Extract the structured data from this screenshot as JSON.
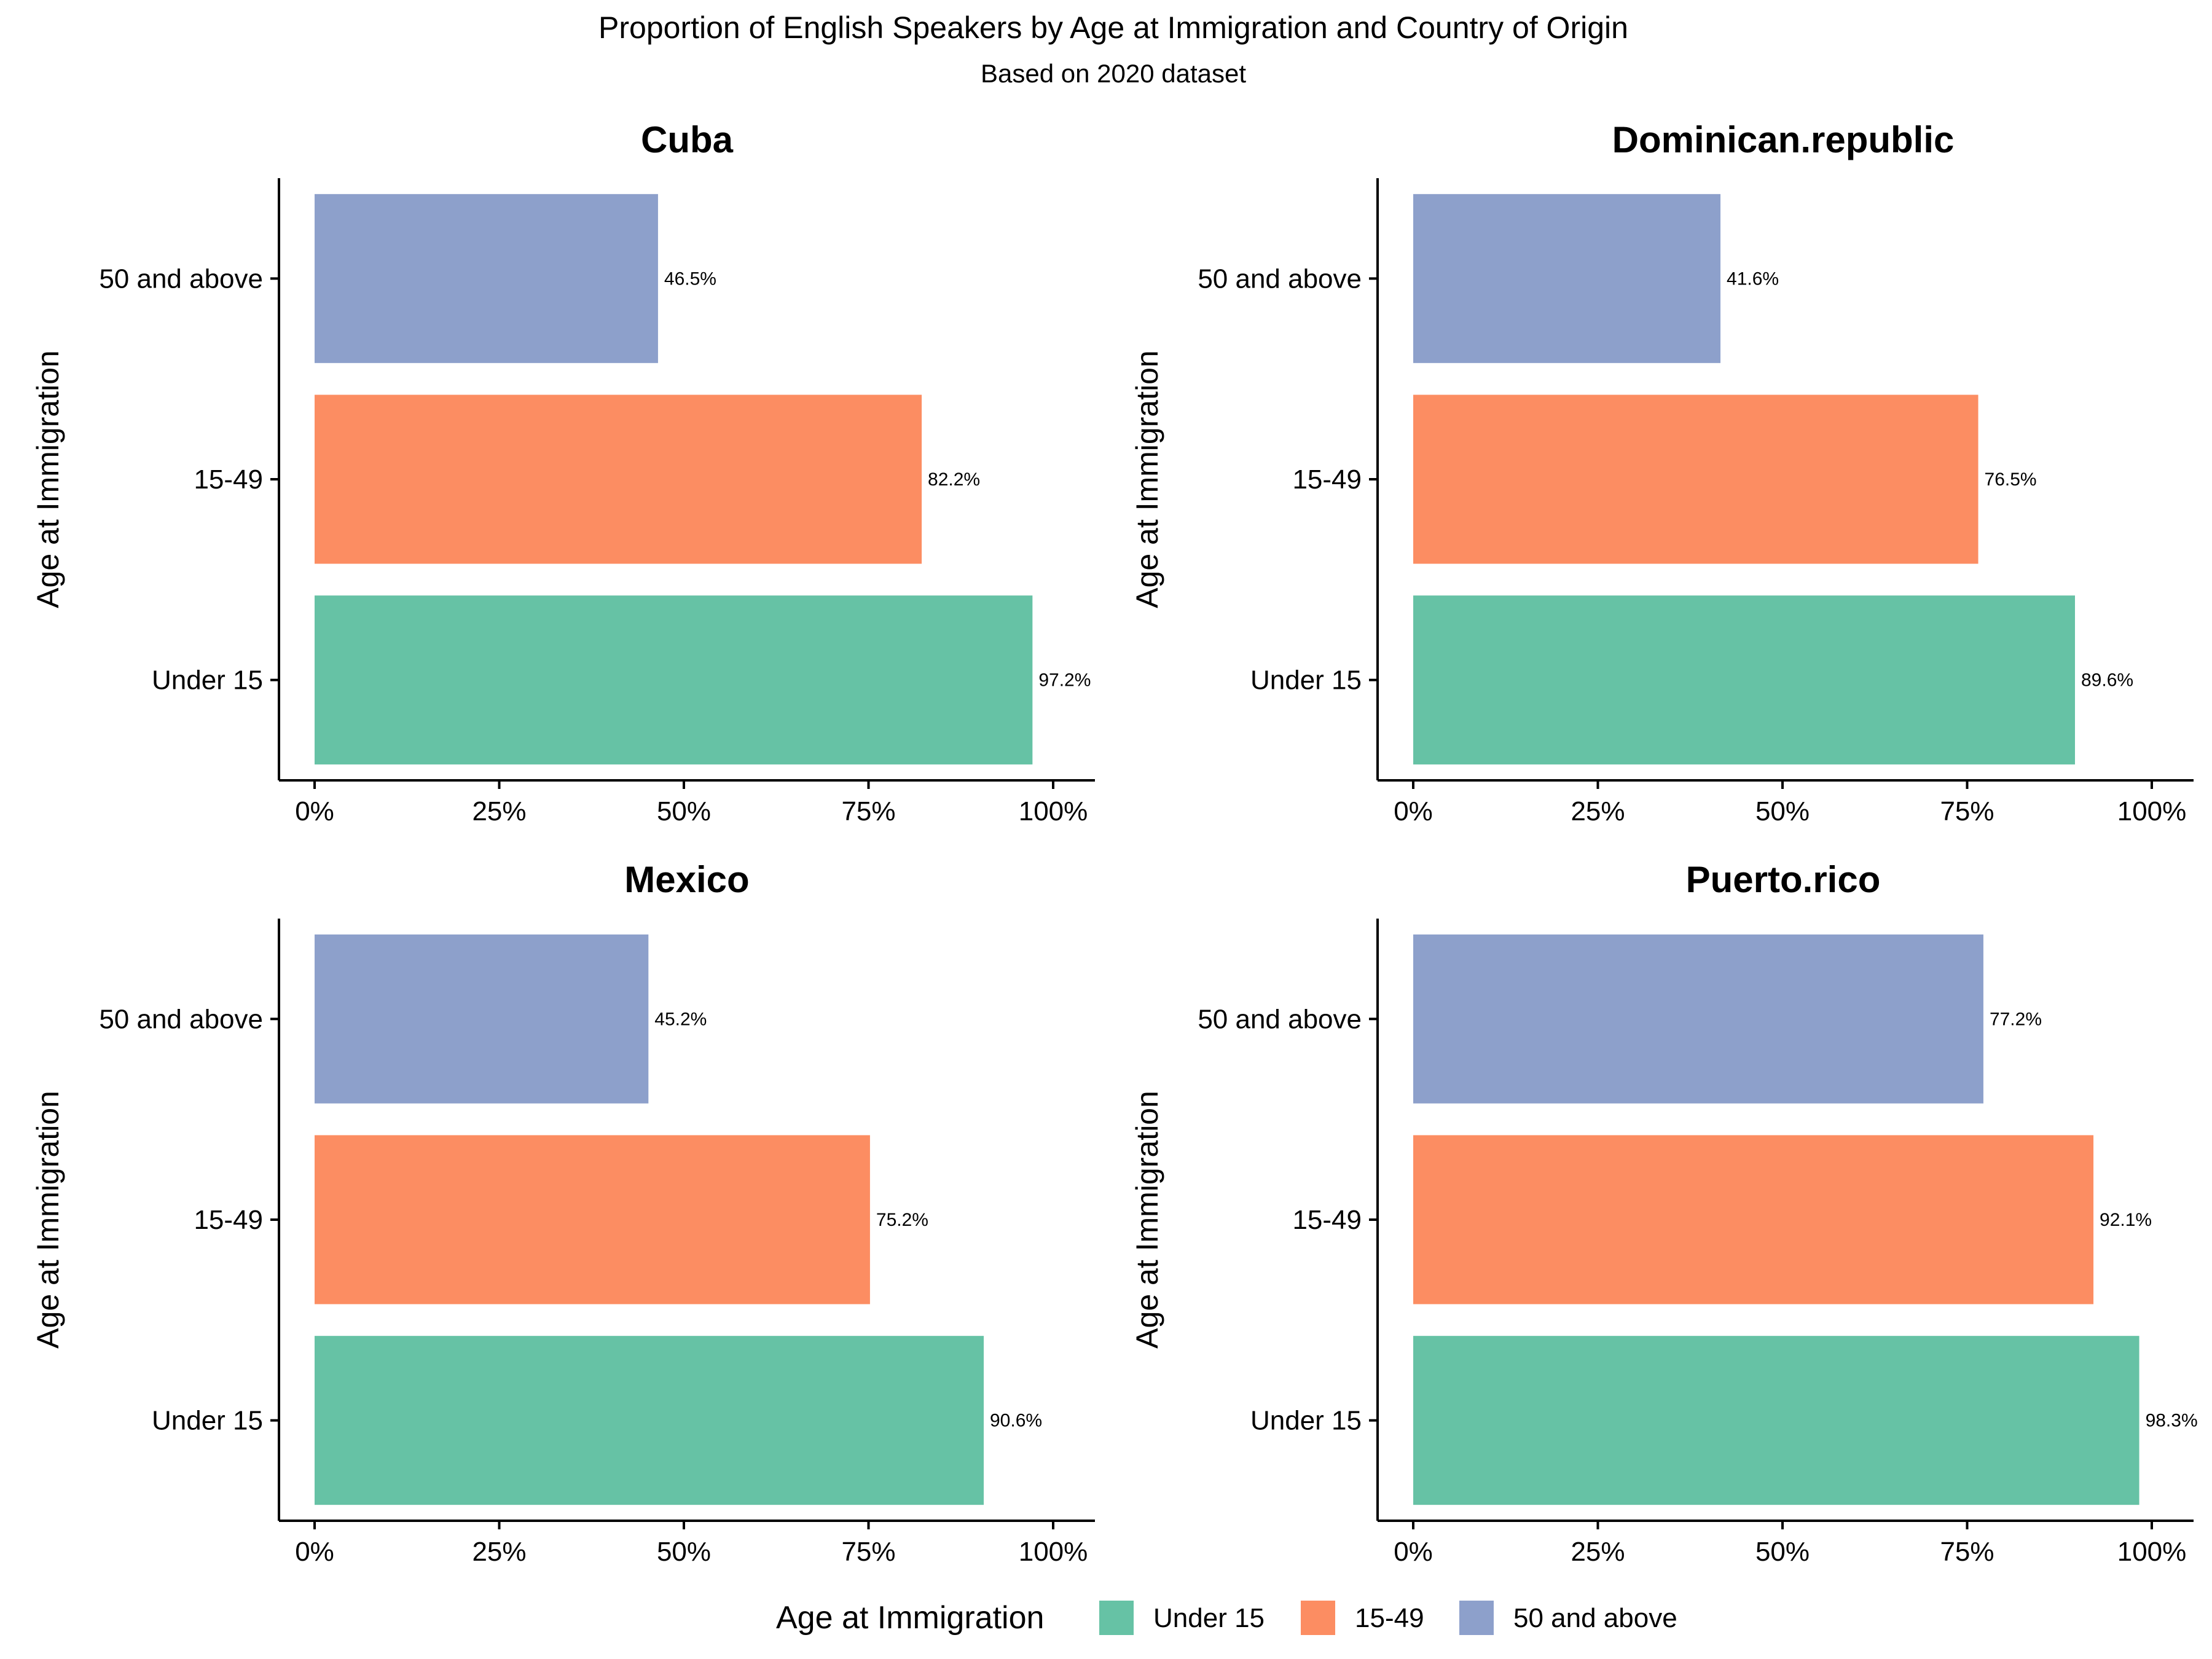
{
  "chart_data": {
    "type": "bar",
    "orientation": "horizontal",
    "title": "Proportion of English Speakers by Age at Immigration and Country of Origin",
    "subtitle": "Based on 2020 dataset",
    "ylabel": "Age at Immigration",
    "xlim": [
      0,
      1
    ],
    "x_ticks": [
      "0%",
      "25%",
      "50%",
      "75%",
      "100%"
    ],
    "categories": [
      "Under 15",
      "15-49",
      "50 and above"
    ],
    "colors": {
      "Under 15": "#66c2a5",
      "15-49": "#fc8d62",
      "50 and above": "#8da0cb"
    },
    "grid": false,
    "legend": {
      "title": "Age at Immigration",
      "position": "bottom",
      "entries": [
        "Under 15",
        "15-49",
        "50 and above"
      ]
    },
    "panels": [
      {
        "title": "Cuba",
        "values": [
          0.972,
          0.822,
          0.465
        ],
        "labels": [
          "97.2%",
          "82.2%",
          "46.5%"
        ]
      },
      {
        "title": "Dominican.republic",
        "values": [
          0.896,
          0.765,
          0.416
        ],
        "labels": [
          "89.6%",
          "76.5%",
          "41.6%"
        ]
      },
      {
        "title": "Mexico",
        "values": [
          0.906,
          0.752,
          0.452
        ],
        "labels": [
          "90.6%",
          "75.2%",
          "45.2%"
        ]
      },
      {
        "title": "Puerto.rico",
        "values": [
          0.983,
          0.921,
          0.772
        ],
        "labels": [
          "98.3%",
          "92.1%",
          "77.2%"
        ]
      }
    ]
  }
}
